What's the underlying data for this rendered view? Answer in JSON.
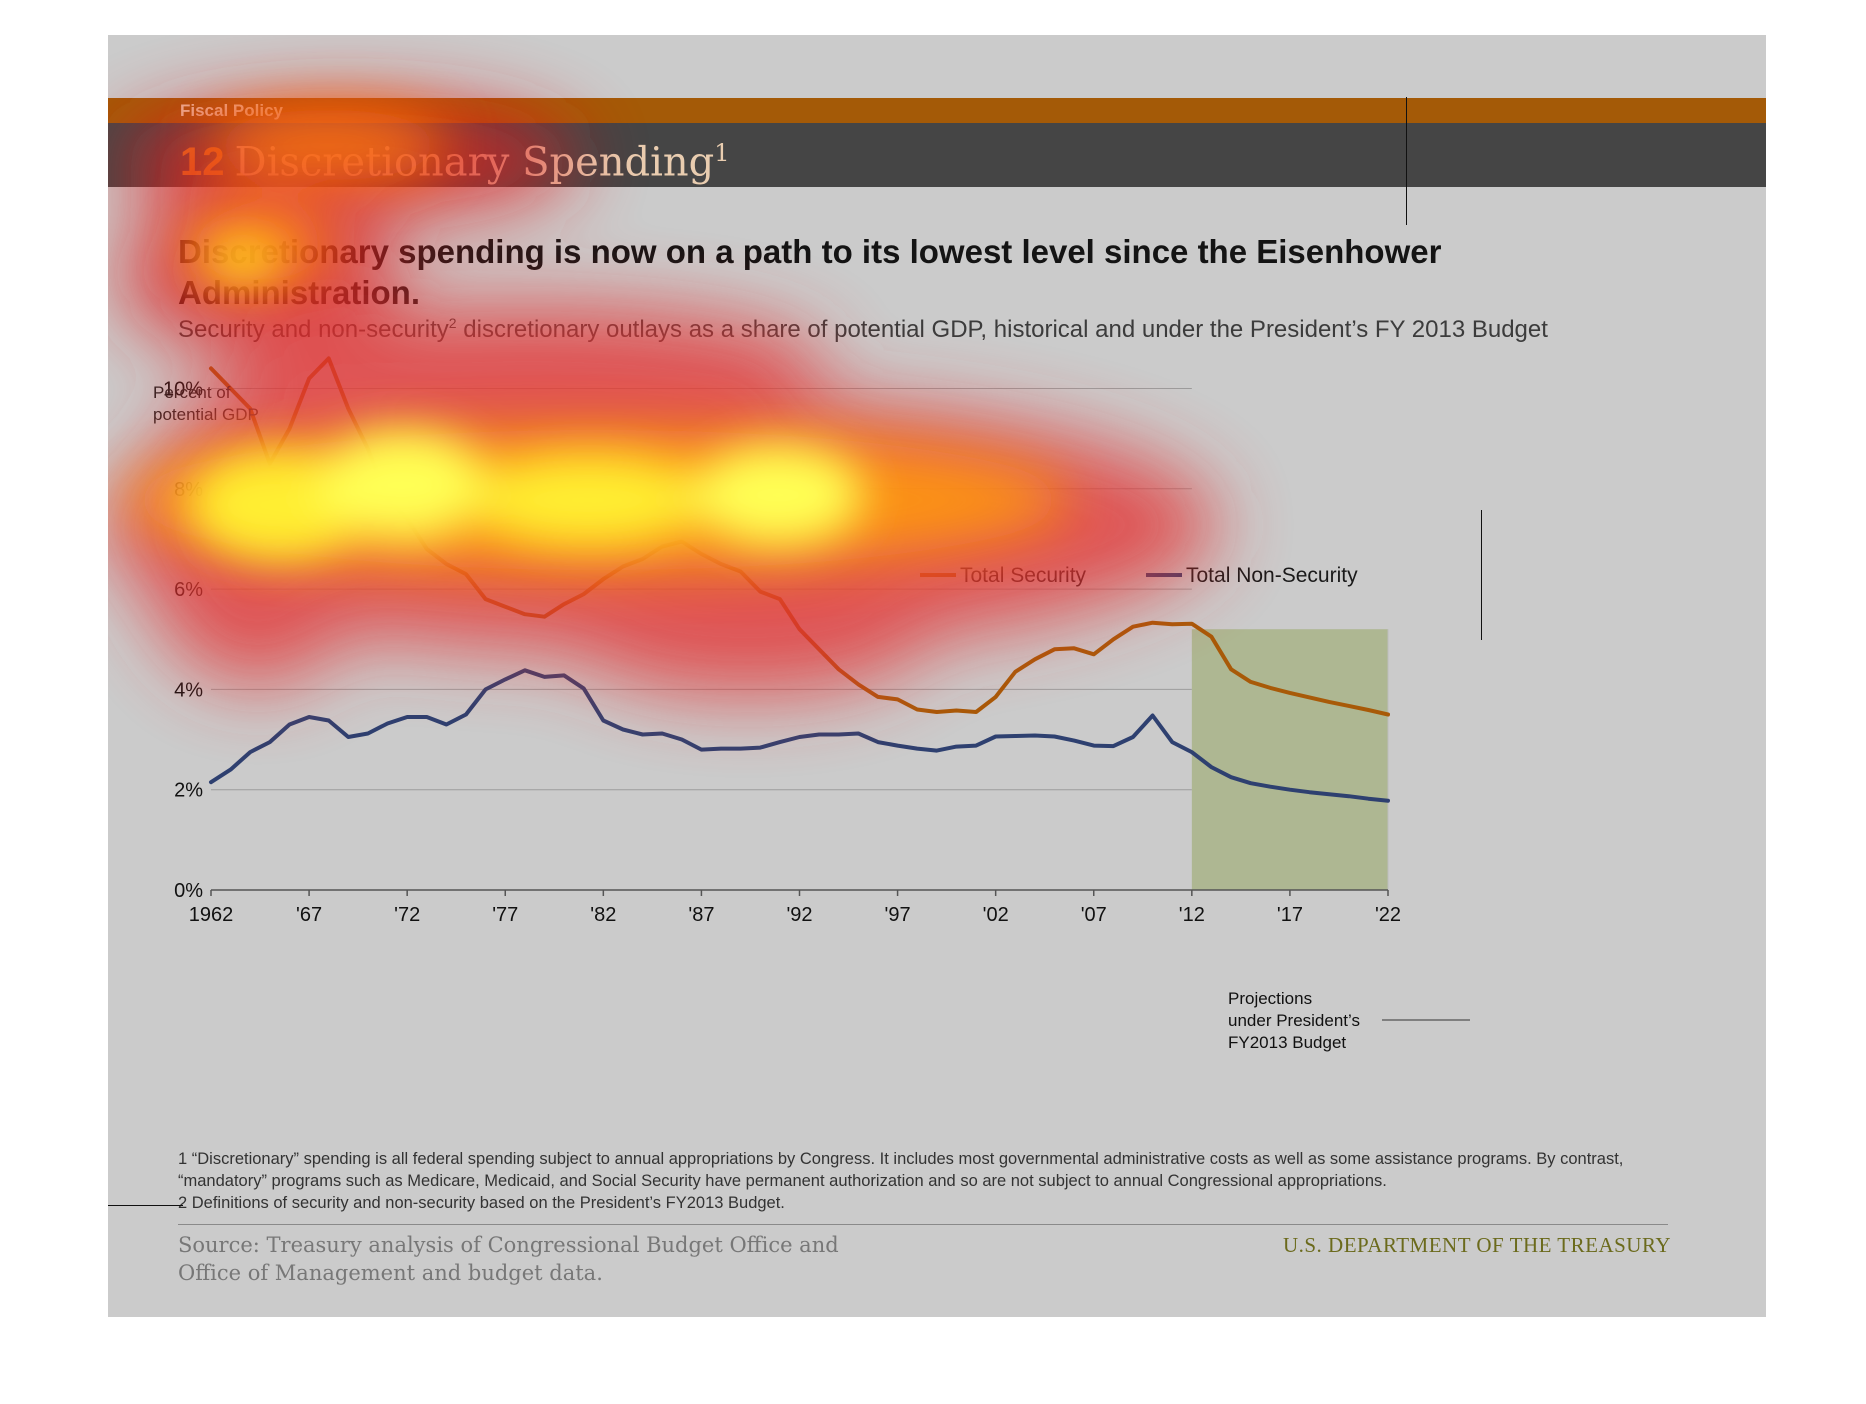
{
  "header": {
    "section": "Fiscal Policy",
    "number": "12",
    "title": "Discretionary Spending",
    "title_sup": "1"
  },
  "headline": "Discretionary spending is now on a path to its lowest level since the Eisenhower Administration.",
  "subtitle": {
    "before": "Security and non-security",
    "sup": "2",
    "after": " discretionary outlays as a share of potential GDP, historical and under the President’s FY 2013 Budget"
  },
  "chart_data": {
    "type": "line",
    "ylabel": "Percent of potential GDP",
    "ylim": [
      0,
      11
    ],
    "yticks": [
      "0%",
      "2%",
      "4%",
      "6%",
      "8%",
      "10%"
    ],
    "grid": "horizontal",
    "legend_placement": "top-right",
    "x": [
      1962,
      1963,
      1964,
      1965,
      1966,
      1967,
      1968,
      1969,
      1970,
      1971,
      1972,
      1973,
      1974,
      1975,
      1976,
      1977,
      1978,
      1979,
      1980,
      1981,
      1982,
      1983,
      1984,
      1985,
      1986,
      1987,
      1988,
      1989,
      1990,
      1991,
      1992,
      1993,
      1994,
      1995,
      1996,
      1997,
      1998,
      1999,
      2000,
      2001,
      2002,
      2003,
      2004,
      2005,
      2006,
      2007,
      2008,
      2009,
      2010,
      2011,
      2012,
      2013,
      2014,
      2015,
      2016,
      2017,
      2018,
      2019,
      2020,
      2021,
      2022
    ],
    "xticks": [
      {
        "x": 1962,
        "label": "1962"
      },
      {
        "x": 1967,
        "label": "'67"
      },
      {
        "x": 1972,
        "label": "'72"
      },
      {
        "x": 1977,
        "label": "'77"
      },
      {
        "x": 1982,
        "label": "'82"
      },
      {
        "x": 1987,
        "label": "'87"
      },
      {
        "x": 1992,
        "label": "'92"
      },
      {
        "x": 1997,
        "label": "'97"
      },
      {
        "x": 2002,
        "label": "'02"
      },
      {
        "x": 2007,
        "label": "'07"
      },
      {
        "x": 2012,
        "label": "'12"
      },
      {
        "x": 2017,
        "label": "'17"
      },
      {
        "x": 2022,
        "label": "'22"
      }
    ],
    "series": [
      {
        "name": "Total Security",
        "color": "#a85a08",
        "values": [
          10.4,
          10.0,
          9.6,
          8.5,
          9.2,
          10.2,
          10.6,
          9.6,
          8.8,
          7.8,
          7.4,
          6.8,
          6.5,
          6.3,
          5.8,
          5.65,
          5.5,
          5.45,
          5.7,
          5.9,
          6.2,
          6.45,
          6.6,
          6.85,
          6.95,
          6.7,
          6.5,
          6.35,
          5.95,
          5.8,
          5.2,
          4.8,
          4.4,
          4.1,
          3.85,
          3.8,
          3.6,
          3.55,
          3.58,
          3.55,
          3.85,
          4.35,
          4.6,
          4.8,
          4.82,
          4.7,
          5.0,
          5.25,
          5.33,
          5.3,
          5.31,
          5.05,
          4.4,
          4.15,
          4.03,
          3.93,
          3.84,
          3.75,
          3.67,
          3.59,
          3.5
        ]
      },
      {
        "name": "Total Non-Security",
        "color": "#2e4070",
        "values": [
          2.15,
          2.4,
          2.75,
          2.95,
          3.3,
          3.45,
          3.38,
          3.05,
          3.12,
          3.32,
          3.45,
          3.45,
          3.3,
          3.5,
          4.0,
          4.2,
          4.38,
          4.25,
          4.28,
          4.02,
          3.38,
          3.2,
          3.1,
          3.12,
          3.0,
          2.8,
          2.82,
          2.82,
          2.84,
          2.95,
          3.05,
          3.1,
          3.1,
          3.12,
          2.95,
          2.88,
          2.82,
          2.78,
          2.86,
          2.88,
          3.06,
          3.07,
          3.08,
          3.06,
          2.98,
          2.88,
          2.87,
          3.05,
          3.48,
          2.95,
          2.75,
          2.45,
          2.25,
          2.13,
          2.06,
          2.0,
          1.95,
          1.91,
          1.87,
          1.82,
          1.78
        ]
      }
    ],
    "projection": {
      "start": 2012,
      "end": 2022,
      "label": "Projections\nunder President’s\nFY2013 Budget",
      "color": "#aeb792"
    },
    "axis_label_lines": [
      "Percent of",
      "potential GDP"
    ]
  },
  "footnotes": [
    "1 “Discretionary” spending is all federal spending subject to annual appropriations by Congress. It includes most governmental administrative costs as well as some assistance programs. By contrast, “mandatory” programs such as Medicare, Medicaid, and Social Security have permanent authorization and so are not subject to annual Congressional appropriations.",
    "2 Definitions of security and non-security based on the President’s FY2013 Budget."
  ],
  "source": "Source: Treasury analysis of Congressional Budget Office and Office of Management and budget data.",
  "agency": "U.S. DEPARTMENT OF THE TREASURY"
}
